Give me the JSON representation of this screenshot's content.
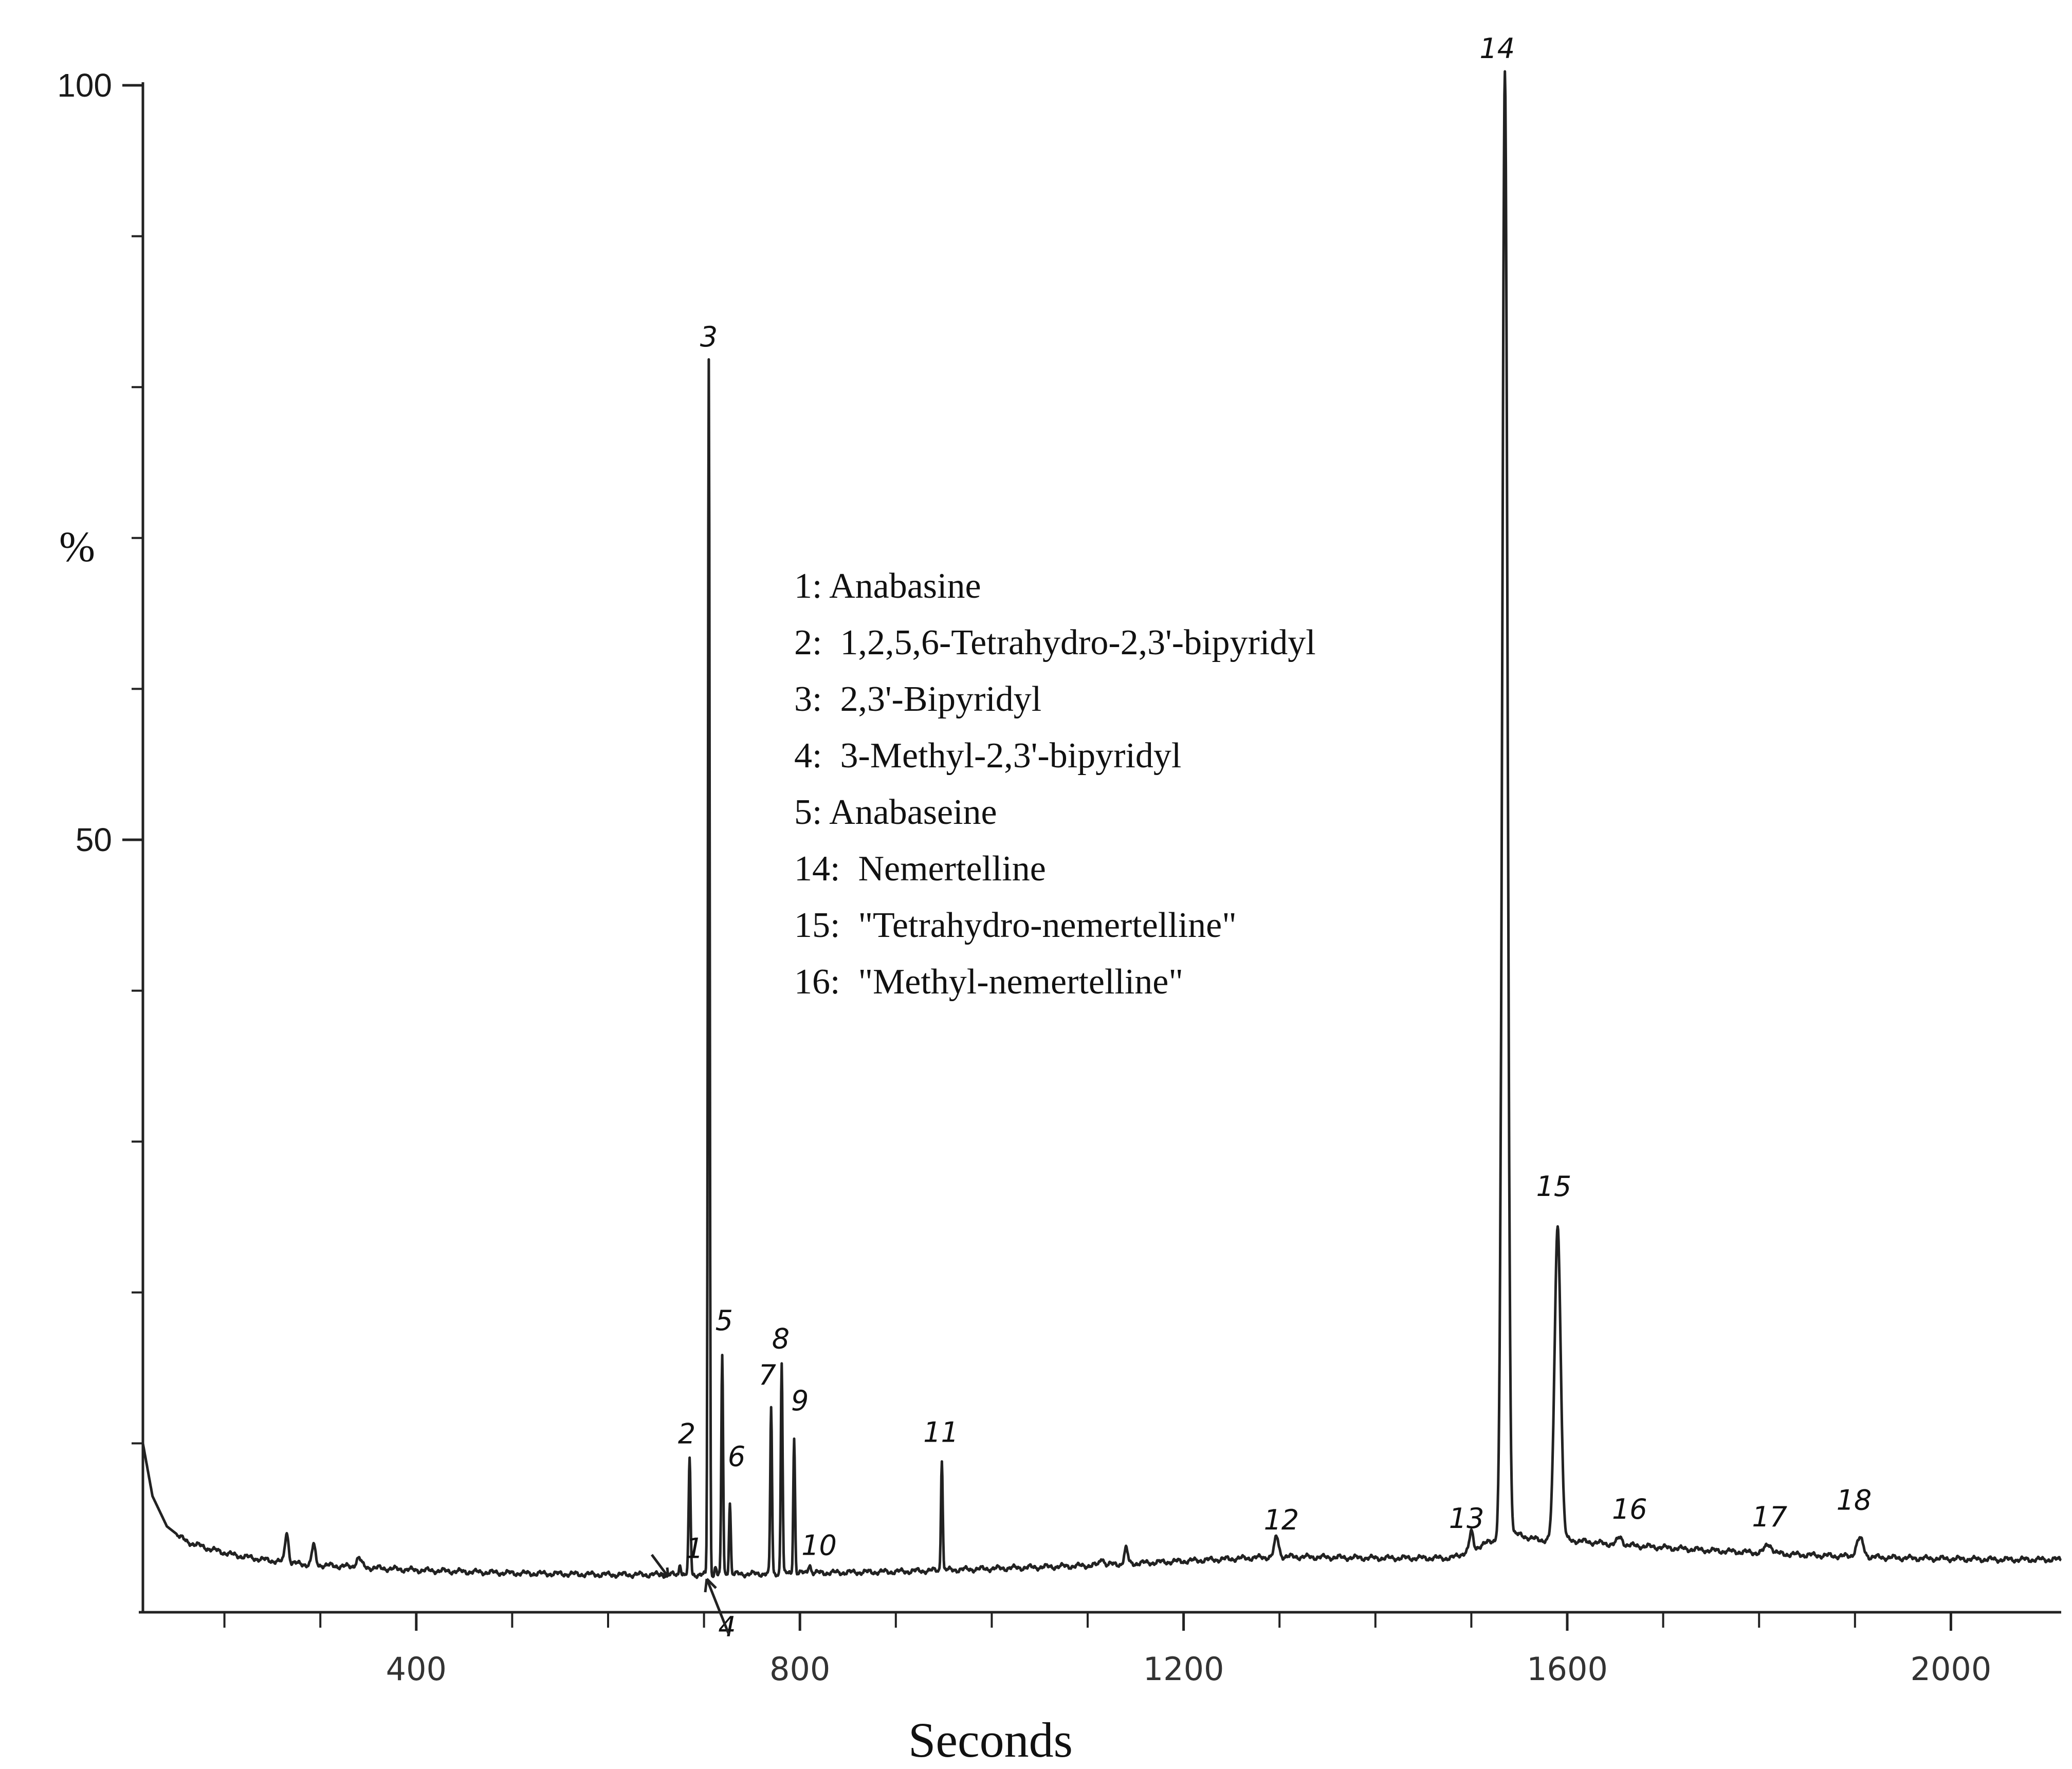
{
  "chart_data": {
    "type": "line",
    "xlabel": "Seconds",
    "ylabel": "%",
    "xlim": [
      115,
      2115
    ],
    "ylim": [
      0,
      100
    ],
    "x_ticks": [
      {
        "value": 400,
        "label": "400"
      },
      {
        "value": 800,
        "label": "800"
      },
      {
        "value": 1200,
        "label": "1200"
      },
      {
        "value": 1600,
        "label": "1600"
      },
      {
        "value": 2000,
        "label": "2000"
      }
    ],
    "x_minor_ticks": [
      200,
      300,
      500,
      600,
      700,
      900,
      1000,
      1100,
      1300,
      1400,
      1500,
      1700,
      1800,
      1900
    ],
    "y_ticks": [
      {
        "value": 100,
        "label": "100"
      },
      {
        "value": 50,
        "label": "50"
      }
    ],
    "y_minor_ticks": [
      10,
      20,
      30,
      40,
      60,
      70,
      80,
      90
    ],
    "y_unit_label": "%",
    "baseline": [
      [
        115,
        10
      ],
      [
        125,
        6.5
      ],
      [
        140,
        4.5
      ],
      [
        160,
        3.5
      ],
      [
        185,
        3.0
      ],
      [
        210,
        2.6
      ],
      [
        240,
        2.3
      ],
      [
        280,
        2.0
      ],
      [
        340,
        1.8
      ],
      [
        400,
        1.6
      ],
      [
        500,
        1.4
      ],
      [
        600,
        1.3
      ],
      [
        700,
        1.3
      ],
      [
        800,
        1.4
      ],
      [
        900,
        1.5
      ],
      [
        1000,
        1.7
      ],
      [
        1100,
        1.9
      ],
      [
        1200,
        2.2
      ],
      [
        1300,
        2.5
      ],
      [
        1400,
        2.4
      ],
      [
        1480,
        2.4
      ],
      [
        1520,
        3.5
      ],
      [
        1545,
        4.0
      ],
      [
        1570,
        3.6
      ],
      [
        1600,
        3.6
      ],
      [
        1650,
        3.3
      ],
      [
        1750,
        2.9
      ],
      [
        1850,
        2.6
      ],
      [
        1950,
        2.4
      ],
      [
        2050,
        2.3
      ],
      [
        2115,
        2.3
      ]
    ],
    "peaks": [
      {
        "x": 265,
        "height": 2.0,
        "width": 4
      },
      {
        "x": 293,
        "height": 1.3,
        "width": 4
      },
      {
        "x": 340,
        "height": 0.6,
        "width": 6
      },
      {
        "x": 1115,
        "height": 0.5,
        "width": 4
      },
      {
        "x": 1140,
        "height": 1.0,
        "width": 4
      },
      {
        "x": 675,
        "height": 0.8,
        "width": 2
      },
      {
        "x": 685,
        "height": 7.6,
        "width": 2.2
      },
      {
        "x": 705,
        "height": 80.5,
        "width": 2
      },
      {
        "x": 712,
        "height": 0.5,
        "width": 2
      },
      {
        "x": 719,
        "height": 14.5,
        "width": 2
      },
      {
        "x": 727,
        "height": 4.8,
        "width": 2
      },
      {
        "x": 770,
        "height": 11.0,
        "width": 2
      },
      {
        "x": 781,
        "height": 14.0,
        "width": 2
      },
      {
        "x": 794,
        "height": 9.0,
        "width": 2
      },
      {
        "x": 810,
        "height": 0.6,
        "width": 3
      },
      {
        "x": 948,
        "height": 7.4,
        "width": 2
      },
      {
        "x": 1297,
        "height": 1.3,
        "width": 5
      },
      {
        "x": 1500,
        "height": 1.2,
        "width": 4
      },
      {
        "x": 1535,
        "height": 97.0,
        "width": 6
      },
      {
        "x": 1590,
        "height": 20.8,
        "width": 7
      },
      {
        "x": 1655,
        "height": 0.5,
        "width": 6
      },
      {
        "x": 1810,
        "height": 0.6,
        "width": 8
      },
      {
        "x": 1905,
        "height": 1.2,
        "width": 8
      }
    ],
    "peak_labels": [
      {
        "x": 690,
        "y": 2.4,
        "text": "1"
      },
      {
        "x": 682,
        "y": 10.0,
        "text": "2"
      },
      {
        "x": 705,
        "y": 82.7,
        "text": "3"
      },
      {
        "x": 724,
        "y": -2.8,
        "text": "4"
      },
      {
        "x": 721,
        "y": 17.5,
        "text": "5"
      },
      {
        "x": 734,
        "y": 8.5,
        "text": "6"
      },
      {
        "x": 766,
        "y": 13.9,
        "text": "7"
      },
      {
        "x": 780,
        "y": 16.3,
        "text": "8"
      },
      {
        "x": 800,
        "y": 12.2,
        "text": "9"
      },
      {
        "x": 820,
        "y": 2.6,
        "text": "10"
      },
      {
        "x": 947,
        "y": 10.1,
        "text": "11"
      },
      {
        "x": 1302,
        "y": 4.3,
        "text": "12"
      },
      {
        "x": 1495,
        "y": 4.4,
        "text": "13"
      },
      {
        "x": 1527,
        "y": 101.8,
        "text": "14"
      },
      {
        "x": 1586,
        "y": 26.4,
        "text": "15"
      },
      {
        "x": 1665,
        "y": 5.0,
        "text": "16"
      },
      {
        "x": 1811,
        "y": 4.5,
        "text": "17"
      },
      {
        "x": 1899,
        "y": 5.6,
        "text": "18"
      }
    ],
    "legend": [
      "1: Anabasine",
      "2:  1,2,5,6-Tetrahydro-2,3'-bipyridyl",
      "3:  2,3'-Bipyridyl",
      "4:  3-Methyl-2,3'-bipyridyl",
      "5: Anabaseine",
      "14:  Nemertelline",
      "15:  \"Tetrahydro-nemertelline\"",
      "16:  \"Methyl-nemertelline\""
    ],
    "legend_position": "center",
    "grid": false,
    "colors": {
      "trace": "#222222",
      "axis": "#222222",
      "text": "#111111"
    }
  }
}
